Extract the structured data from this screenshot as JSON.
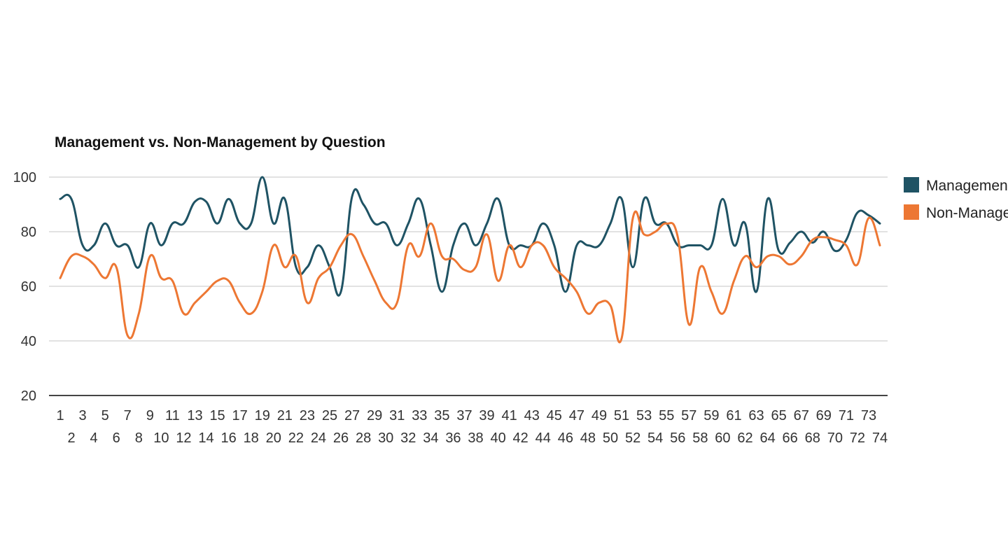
{
  "chart_data": {
    "type": "line",
    "title": "Management vs. Non-Management by Question",
    "xlabel": "",
    "ylabel": "",
    "ylim": [
      20,
      100
    ],
    "yticks": [
      20,
      40,
      60,
      80,
      100
    ],
    "grid": true,
    "legend_position": "right",
    "x": [
      1,
      2,
      3,
      4,
      5,
      6,
      7,
      8,
      9,
      10,
      11,
      12,
      13,
      14,
      15,
      16,
      17,
      18,
      19,
      20,
      21,
      22,
      23,
      24,
      25,
      26,
      27,
      28,
      29,
      30,
      31,
      32,
      33,
      34,
      35,
      36,
      37,
      38,
      39,
      40,
      41,
      42,
      43,
      44,
      45,
      46,
      47,
      48,
      49,
      50,
      51,
      52,
      53,
      54,
      55,
      56,
      57,
      58,
      59,
      60,
      61,
      62,
      63,
      64,
      65,
      66,
      67,
      68,
      69,
      70,
      71,
      72,
      73,
      74
    ],
    "series": [
      {
        "name": "Management",
        "color": "#1f5364",
        "values": [
          92,
          92,
          75,
          75,
          83,
          75,
          75,
          67,
          83,
          75,
          83,
          83,
          91,
          91,
          83,
          92,
          83,
          83,
          100,
          83,
          92,
          67,
          67,
          75,
          67,
          58,
          93,
          90,
          83,
          83,
          75,
          83,
          92,
          75,
          58,
          75,
          83,
          75,
          83,
          92,
          75,
          75,
          75,
          83,
          75,
          58,
          75,
          75,
          75,
          83,
          92,
          67,
          92,
          83,
          83,
          75,
          75,
          75,
          75,
          92,
          75,
          83,
          58,
          92,
          73,
          76,
          80,
          76,
          80,
          73,
          77,
          87,
          86,
          83
        ]
      },
      {
        "name": "Non-Management",
        "color": "#ed7733",
        "values": [
          63,
          71,
          71,
          68,
          63,
          67,
          42,
          50,
          71,
          63,
          62,
          50,
          54,
          58,
          62,
          62,
          54,
          50,
          58,
          75,
          67,
          71,
          54,
          63,
          67,
          75,
          79,
          71,
          62,
          54,
          54,
          75,
          71,
          83,
          71,
          70,
          66,
          67,
          79,
          62,
          75,
          67,
          75,
          75,
          67,
          63,
          58,
          50,
          54,
          53,
          41,
          85,
          79,
          80,
          83,
          78,
          46,
          67,
          58,
          50,
          62,
          71,
          67,
          71,
          71,
          68,
          71,
          77,
          78,
          77,
          75,
          68,
          85,
          75
        ]
      }
    ]
  }
}
